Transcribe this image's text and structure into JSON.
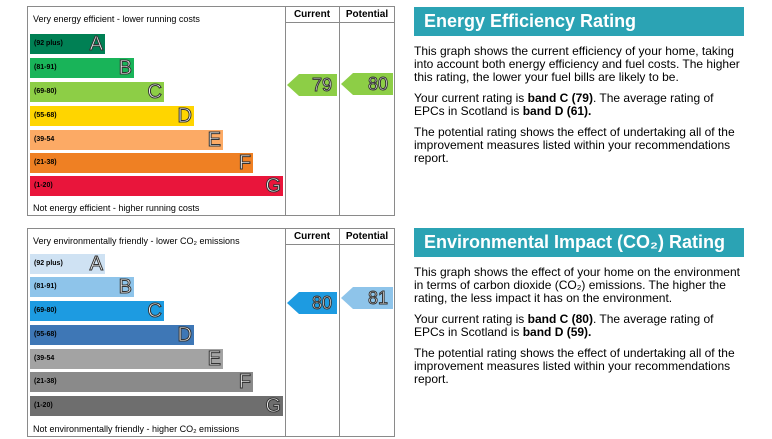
{
  "energy_efficiency": {
    "top_label": "Very energy efficient - lower running costs",
    "bottom_label": "Not energy efficient - higher running costs",
    "col_current": "Current",
    "col_potential": "Potential",
    "bands": [
      {
        "range": "(92 plus)",
        "letter": "A",
        "color": "#008054"
      },
      {
        "range": "(81-91)",
        "letter": "B",
        "color": "#19b459"
      },
      {
        "range": "(69-80)",
        "letter": "C",
        "color": "#8dce46"
      },
      {
        "range": "(55-68)",
        "letter": "D",
        "color": "#ffd500"
      },
      {
        "range": "(39-54",
        "letter": "E",
        "color": "#fcaa65"
      },
      {
        "range": "(21-38)",
        "letter": "F",
        "color": "#ef8023"
      },
      {
        "range": "(1-20)",
        "letter": "G",
        "color": "#e9153b"
      }
    ],
    "current_value": "79",
    "potential_value": "80",
    "arrow_color": "#8dce46"
  },
  "environmental_impact": {
    "top_label": "Very environmentally friendly - lower CO₂ emissions",
    "bottom_label": "Not environmentally friendly - higher CO₂ emissions",
    "col_current": "Current",
    "col_potential": "Potential",
    "bands": [
      {
        "range": "(92 plus)",
        "letter": "A",
        "color": "#cfe2f3"
      },
      {
        "range": "(81-91)",
        "letter": "B",
        "color": "#8ec4ea"
      },
      {
        "range": "(69-80)",
        "letter": "C",
        "color": "#1d9be1"
      },
      {
        "range": "(55-68)",
        "letter": "D",
        "color": "#3e77b6"
      },
      {
        "range": "(39-54",
        "letter": "E",
        "color": "#a3a3a3"
      },
      {
        "range": "(21-38)",
        "letter": "F",
        "color": "#8a8a8a"
      },
      {
        "range": "(1-20)",
        "letter": "G",
        "color": "#6e6e6e"
      }
    ],
    "current_value": "80",
    "potential_value": "81",
    "current_arrow_color": "#1d9be1",
    "potential_arrow_color": "#8ec4ea"
  },
  "panel_ee": {
    "title": "Energy Efficiency Rating",
    "para1": "This graph shows the current efficiency of your home, taking into account both energy efficiency and fuel costs. The higher this rating, the lower your fuel bills are likely to be.",
    "para2_pre": "Your current rating is ",
    "para2_b1": "band C (79)",
    "para2_mid": ". The average rating of EPCs in Scotland is ",
    "para2_b2": "band D (61).",
    "para3": "The potential rating shows the effect of undertaking all of the improvement measures listed within your recommendations report."
  },
  "panel_ei": {
    "title": "Environmental Impact (CO₂) Rating",
    "para1": "This graph shows the effect of your home on the environment in terms of carbon dioxide (CO₂) emissions. The higher the rating, the less impact it has on the environment.",
    "para2_pre": "Your current rating is ",
    "para2_b1": "band C (80)",
    "para2_mid": ". The average rating of EPCs in Scotland is ",
    "para2_b2": "band D (59).",
    "para3": "The potential rating shows the effect of undertaking all of the improvement measures listed within your recommendations report."
  },
  "header_color": "#2ba3b4"
}
